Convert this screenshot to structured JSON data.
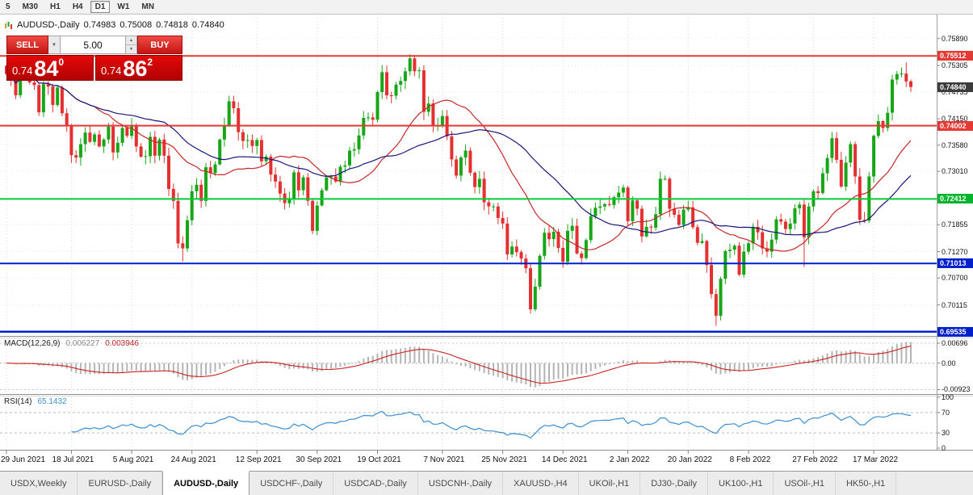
{
  "toolbar": {
    "timeframes": [
      "5",
      "M30",
      "H1",
      "H4",
      "D1",
      "W1",
      "MN"
    ],
    "active": "D1"
  },
  "chart_header": {
    "symbol": "AUDUSD-,Daily",
    "open": "0.74983",
    "high": "0.75008",
    "low": "0.74818",
    "close": "0.74840"
  },
  "trade_panel": {
    "sell_label": "SELL",
    "buy_label": "BUY",
    "volume": "5.00",
    "bid": {
      "small": "0.74",
      "big": "84",
      "sup": "0"
    },
    "ask": {
      "small": "0.74",
      "big": "86",
      "sup": "2"
    }
  },
  "price_axis": {
    "labels": [
      "0.75890",
      "0.75305",
      "0.74735",
      "0.74150",
      "0.73580",
      "0.73010",
      "0.72425",
      "0.71855",
      "0.71270",
      "0.70700",
      "0.70115"
    ]
  },
  "levels": [
    {
      "label": "0.75512",
      "color": "#e53935",
      "tag": "#e53935",
      "line": true,
      "width": 2
    },
    {
      "label": "0.74840",
      "color": "#3c3c3c",
      "tag": "#3c3c3c",
      "line": false,
      "width": 0
    },
    {
      "label": "0.74002",
      "color": "#e53935",
      "tag": "#e53935",
      "line": true,
      "width": 2
    },
    {
      "label": "0.72412",
      "color": "#00cc33",
      "tag": "#00b52d",
      "line": true,
      "width": 2
    },
    {
      "label": "0.71013",
      "color": "#0020cc",
      "tag": "#0020cc",
      "line": true,
      "width": 2
    },
    {
      "label": "0.69535",
      "color": "#0020cc",
      "tag": "#0020cc",
      "line": true,
      "width": 2.5
    }
  ],
  "macd_panel": {
    "label": "MACD(12,26,9)",
    "value1": "0.006227",
    "value2": "0.003946"
  },
  "rsi_panel": {
    "label": "RSI(14)",
    "value": "65.1432"
  },
  "date_axis": {
    "labels": [
      "29 Jun 2021",
      "18 Jul 2021",
      "5 Aug 2021",
      "24 Aug 2021",
      "12 Sep 2021",
      "30 Sep 2021",
      "19 Oct 2021",
      "7 Nov 2021",
      "25 Nov 2021",
      "14 Dec 2021",
      "2 Jan 2022",
      "20 Jan 2022",
      "8 Feb 2022",
      "27 Feb 2022",
      "17 Mar 2022"
    ],
    "tick_indices": [
      0,
      14,
      27,
      40,
      54,
      67,
      80,
      94,
      107,
      120,
      134,
      147,
      160,
      174,
      187
    ]
  },
  "tabs": {
    "items": [
      "USDX,Weekly",
      "EURUSD-,Daily",
      "AUDUSD-,Daily",
      "USDCHF-,Daily",
      "USDCAD-,Daily",
      "USDCNH-,Daily",
      "XAUUSD-,H4",
      "UKOil-,H1",
      "DJ30-,Daily",
      "UK100-,H1",
      "USOil-,H1",
      "HK50-,H1"
    ],
    "active_index": 2
  },
  "chart_data": {
    "type": "candlestick",
    "symbol": "AUDUSD-",
    "period": "Daily",
    "quote": {
      "open": 0.74983,
      "high": 0.75008,
      "low": 0.74818,
      "close": 0.7484
    },
    "ylim": [
      0.6946,
      0.7634
    ],
    "first_open": 0.753,
    "closes": [
      0.7512,
      0.7499,
      0.7466,
      0.7527,
      0.7525,
      0.7494,
      0.7488,
      0.7429,
      0.749,
      0.7485,
      0.7445,
      0.7483,
      0.7427,
      0.7401,
      0.7336,
      0.7331,
      0.736,
      0.7385,
      0.7365,
      0.7381,
      0.7355,
      0.737,
      0.7398,
      0.7342,
      0.7363,
      0.7395,
      0.7378,
      0.74,
      0.7355,
      0.7333,
      0.7334,
      0.7376,
      0.7335,
      0.737,
      0.7335,
      0.7263,
      0.7237,
      0.7145,
      0.7134,
      0.7195,
      0.7258,
      0.7272,
      0.7237,
      0.731,
      0.7297,
      0.7316,
      0.737,
      0.74,
      0.7453,
      0.7438,
      0.7386,
      0.7367,
      0.7369,
      0.7356,
      0.7369,
      0.7323,
      0.7333,
      0.7294,
      0.7279,
      0.7253,
      0.7232,
      0.724,
      0.7299,
      0.726,
      0.7288,
      0.7237,
      0.7172,
      0.7227,
      0.726,
      0.7288,
      0.729,
      0.7279,
      0.7311,
      0.7314,
      0.7346,
      0.7349,
      0.7379,
      0.7417,
      0.7418,
      0.7413,
      0.7473,
      0.7516,
      0.7466,
      0.7465,
      0.7489,
      0.7497,
      0.7518,
      0.7546,
      0.7518,
      0.752,
      0.743,
      0.7448,
      0.7399,
      0.74,
      0.7421,
      0.7377,
      0.7327,
      0.7292,
      0.7331,
      0.7346,
      0.7298,
      0.7267,
      0.7285,
      0.7234,
      0.7225,
      0.7225,
      0.72,
      0.7188,
      0.7121,
      0.7138,
      0.7126,
      0.7112,
      0.7091,
      0.7002,
      0.7051,
      0.7118,
      0.7168,
      0.7154,
      0.717,
      0.7135,
      0.7105,
      0.7172,
      0.7183,
      0.7123,
      0.7113,
      0.7152,
      0.7204,
      0.7222,
      0.7225,
      0.723,
      0.7228,
      0.7245,
      0.7255,
      0.7266,
      0.7193,
      0.7238,
      0.722,
      0.716,
      0.7181,
      0.7179,
      0.7208,
      0.7285,
      0.7285,
      0.722,
      0.7207,
      0.7185,
      0.7218,
      0.7223,
      0.718,
      0.7146,
      0.715,
      0.7098,
      0.7035,
      0.6988,
      0.7068,
      0.7128,
      0.7131,
      0.714,
      0.7077,
      0.7127,
      0.7145,
      0.7181,
      0.7169,
      0.7134,
      0.7127,
      0.7153,
      0.7197,
      0.7192,
      0.7176,
      0.7188,
      0.7221,
      0.7229,
      0.7158,
      0.7225,
      0.7258,
      0.7254,
      0.7297,
      0.733,
      0.7373,
      0.7326,
      0.7268,
      0.732,
      0.736,
      0.729,
      0.7196,
      0.7194,
      0.729,
      0.7378,
      0.741,
      0.7395,
      0.7428,
      0.75,
      0.7512,
      0.7513,
      0.7496,
      0.7484
    ],
    "wick_seed": 7,
    "wick_overrides": {
      "38": {
        "low": 0.7106
      },
      "66": {
        "low": 0.7165
      },
      "87": {
        "high": 0.7555
      },
      "113": {
        "low": 0.6993
      },
      "153": {
        "low": 0.6966
      },
      "172": {
        "low": 0.7094
      },
      "194": {
        "high": 0.7537
      },
      "195": {
        "high": 0.75
      }
    },
    "ma_periods": [
      20,
      35
    ],
    "macd": {
      "params": [
        12,
        26,
        9
      ],
      "last_main": 0.006227,
      "last_signal": 0.003946,
      "axis": [
        "0.00696",
        "0.00",
        "-0.00923"
      ]
    },
    "rsi": {
      "period": 14,
      "last": 65.1432,
      "axis": [
        "100",
        "70",
        "30",
        "0"
      ],
      "levels": [
        70,
        30
      ]
    },
    "colors": {
      "up": "#17a617",
      "down": "#e33030",
      "ma_fast": "#c62828",
      "ma_slow": "#16167a",
      "macd_hist": "#b4b4b4",
      "macd_signal": "#cc2222",
      "rsi": "#3a8fd2",
      "grid": "#d4d4d4"
    }
  }
}
